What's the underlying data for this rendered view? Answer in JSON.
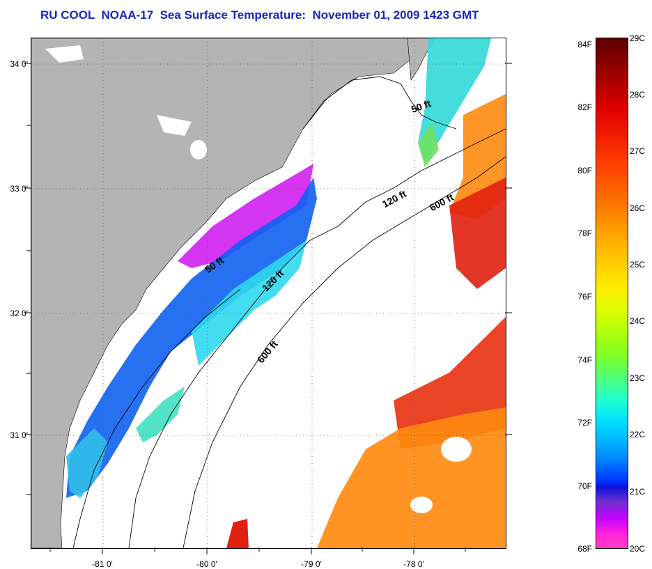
{
  "title": "RU COOL  NOAA-17  Sea Surface Temperature:  November 01, 2009 1423 GMT",
  "latitude_labels": [
    "34 0'",
    "33 0'",
    "32 0'",
    "31 0'"
  ],
  "longitude_labels": [
    "-81 0'",
    "-80 0'",
    "-79 0'",
    "-78 0'"
  ],
  "depth_contours": [
    "50 ft",
    "120 ft",
    "600 ft",
    "50 ft",
    "120 ft",
    "600 ft"
  ],
  "colorbar": {
    "fahrenheit": [
      "84F",
      "82F",
      "80F",
      "78F",
      "76F",
      "74F",
      "72F",
      "70F",
      "68F"
    ],
    "celsius": [
      "29C",
      "28C",
      "27C",
      "26C",
      "25C",
      "24C",
      "23C",
      "22C",
      "21C",
      "20C"
    ]
  },
  "colors": {
    "land": "#b4b4b4",
    "title": "#1a26c0",
    "cloud": "#ffffff"
  }
}
